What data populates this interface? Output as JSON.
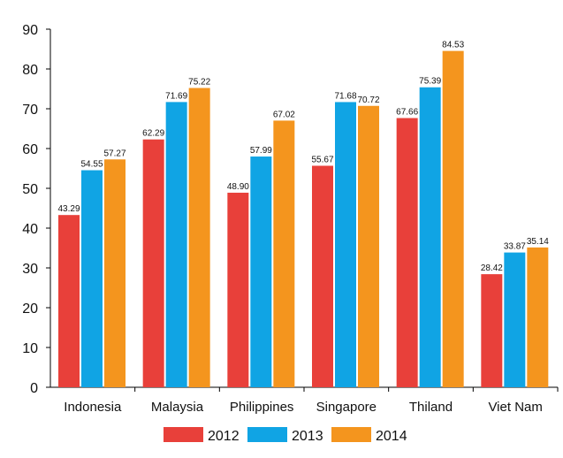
{
  "chart_data": {
    "type": "bar",
    "categories": [
      "Indonesia",
      "Malaysia",
      "Philippines",
      "Singapore",
      "Thiland",
      "Viet Nam"
    ],
    "series": [
      {
        "name": "2012",
        "color": "#e8403a",
        "values": [
          43.29,
          62.29,
          48.9,
          55.67,
          67.66,
          28.42
        ],
        "labels": [
          "43.29",
          "62.29",
          "48.90",
          "55.67",
          "67.66",
          "28.42"
        ]
      },
      {
        "name": "2013",
        "color": "#10a4e4",
        "values": [
          54.55,
          71.69,
          57.99,
          71.68,
          75.39,
          33.87
        ],
        "labels": [
          "54.55",
          "71.69",
          "57.99",
          "71.68",
          "75.39",
          "33.87"
        ]
      },
      {
        "name": "2014",
        "color": "#f4951e",
        "values": [
          57.27,
          75.22,
          67.02,
          70.72,
          84.53,
          35.14
        ],
        "labels": [
          "57.27",
          "75.22",
          "67.02",
          "70.72",
          "84.53",
          "35.14"
        ]
      }
    ],
    "yticks": [
      "0",
      "10",
      "20",
      "30",
      "40",
      "50",
      "60",
      "70",
      "80",
      "90"
    ],
    "ylim": [
      0,
      90
    ],
    "title": "",
    "xlabel": "",
    "ylabel": "",
    "grid": false,
    "legend_position": "bottom"
  }
}
